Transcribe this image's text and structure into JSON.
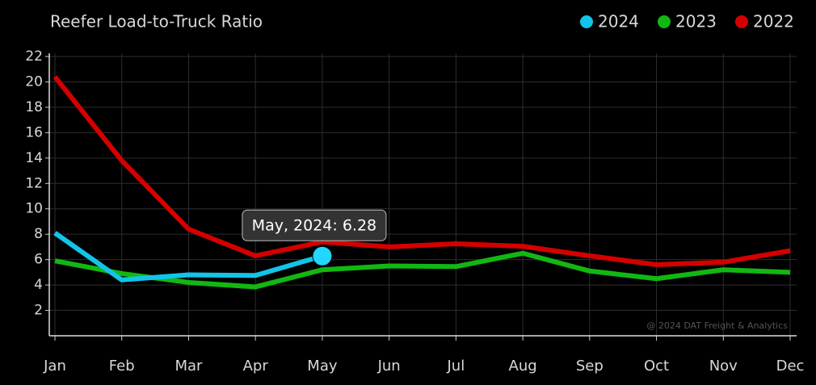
{
  "chart_data": {
    "type": "line",
    "title": "Reefer Load-to-Truck Ratio",
    "categories": [
      "Jan",
      "Feb",
      "Mar",
      "Apr",
      "May",
      "Jun",
      "Jul",
      "Aug",
      "Sep",
      "Oct",
      "Nov",
      "Dec"
    ],
    "series": [
      {
        "name": "2024",
        "color": "#12c4e8",
        "values": [
          8.1,
          4.4,
          4.8,
          4.75,
          6.28,
          null,
          null,
          null,
          null,
          null,
          null,
          null
        ]
      },
      {
        "name": "2023",
        "color": "#12b812",
        "values": [
          5.9,
          4.9,
          4.2,
          3.85,
          5.2,
          5.5,
          5.45,
          6.5,
          5.1,
          4.5,
          5.2,
          5.0
        ]
      },
      {
        "name": "2022",
        "color": "#d40000",
        "values": [
          20.4,
          13.8,
          8.4,
          6.3,
          7.4,
          7.0,
          7.25,
          7.05,
          6.3,
          5.6,
          5.8,
          6.7
        ]
      }
    ],
    "ylim": [
      0,
      22
    ],
    "yticks": [
      2,
      4,
      6,
      8,
      10,
      12,
      14,
      16,
      18,
      20,
      22
    ],
    "grid": true,
    "legend": "top-right",
    "tooltip": "May, 2024: 6.28",
    "watermark": "@ 2024 DAT Freight & Analytics"
  }
}
